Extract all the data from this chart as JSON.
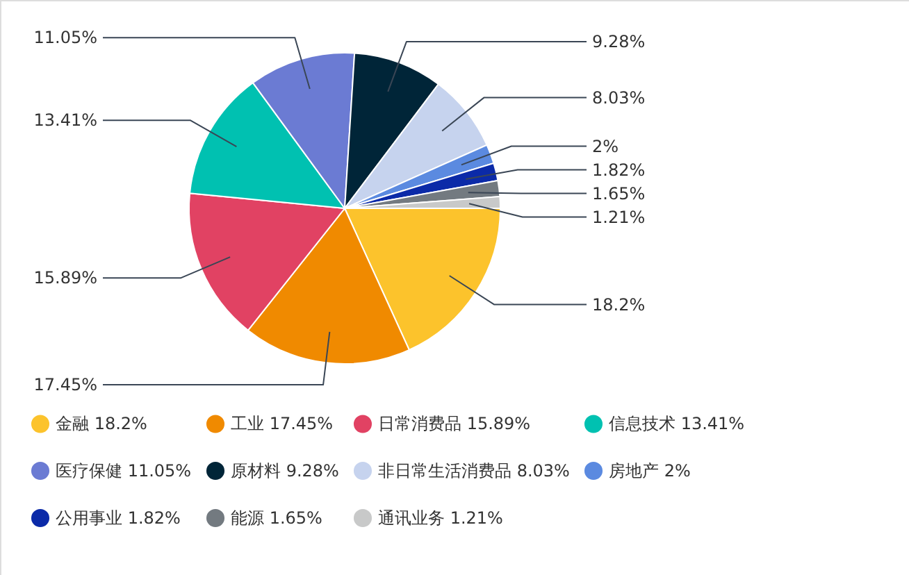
{
  "chart_data": {
    "type": "pie",
    "categories": [
      "金融",
      "工业",
      "日常消费品",
      "信息技术",
      "医疗保健",
      "原材料",
      "非日常生活消费品",
      "房地产",
      "公用事业",
      "能源",
      "通讯业务"
    ],
    "values": [
      18.2,
      17.45,
      15.89,
      13.41,
      11.05,
      9.28,
      8.03,
      2,
      1.82,
      1.65,
      1.21
    ],
    "value_labels": [
      "18.2%",
      "17.45%",
      "15.89%",
      "13.41%",
      "11.05%",
      "9.28%",
      "8.03%",
      "2%",
      "1.82%",
      "1.65%",
      "1.21%"
    ],
    "colors": [
      "#fcc32c",
      "#f08a00",
      "#e14263",
      "#00c1b1",
      "#6b7bd3",
      "#002538",
      "#c6d3ee",
      "#5b8ae0",
      "#0b2aa8",
      "#737a80",
      "#c8c9c9"
    ],
    "legend": "bottom"
  }
}
